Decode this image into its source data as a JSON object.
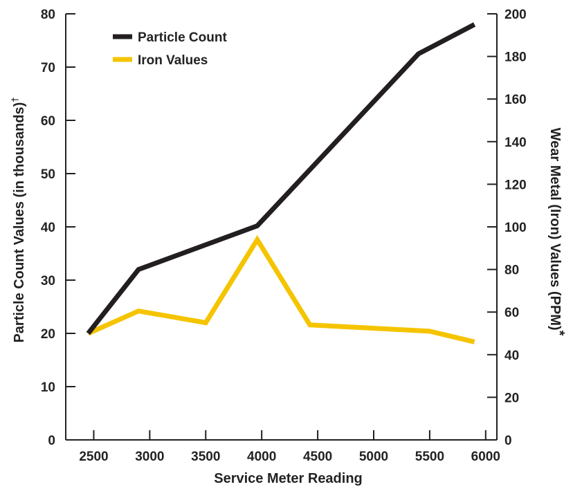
{
  "chart_data": {
    "type": "line",
    "title": "",
    "xlabel": "Service Meter Reading",
    "ylabel_left": "Particle Count Values (in thousands)",
    "ylabel_left_mark": "†",
    "ylabel_right": "Wear Metal (Iron) Values (PPM)",
    "ylabel_right_mark": "*",
    "x_ticks": [
      "2500",
      "3000",
      "3500",
      "4000",
      "4500",
      "5000",
      "5500",
      "6000"
    ],
    "xlim": [
      2250,
      6100
    ],
    "y_left_ticks": [
      "0",
      "10",
      "20",
      "30",
      "40",
      "50",
      "60",
      "70",
      "80"
    ],
    "ylim_left": [
      0,
      80
    ],
    "y_right_ticks": [
      "0",
      "20",
      "40",
      "60",
      "80",
      "100",
      "120",
      "140",
      "160",
      "180",
      "200"
    ],
    "ylim_right": [
      0,
      200
    ],
    "grid": false,
    "legend_position": "top-left",
    "series": [
      {
        "name": "Particle Count",
        "axis": "left",
        "color": "#231f20",
        "x": [
          2450,
          2900,
          3960,
          5400,
          5900
        ],
        "y": [
          20,
          32,
          40.2,
          72.5,
          78
        ]
      },
      {
        "name": "Iron Values",
        "axis": "right",
        "color": "#f5c400",
        "x": [
          2450,
          2900,
          3500,
          3960,
          4430,
          5500,
          5900
        ],
        "y": [
          50,
          60.5,
          55,
          94,
          54,
          51,
          46
        ]
      }
    ],
    "colors": {
      "axis": "#231f20",
      "right_axis_title": "#f5c400"
    }
  }
}
